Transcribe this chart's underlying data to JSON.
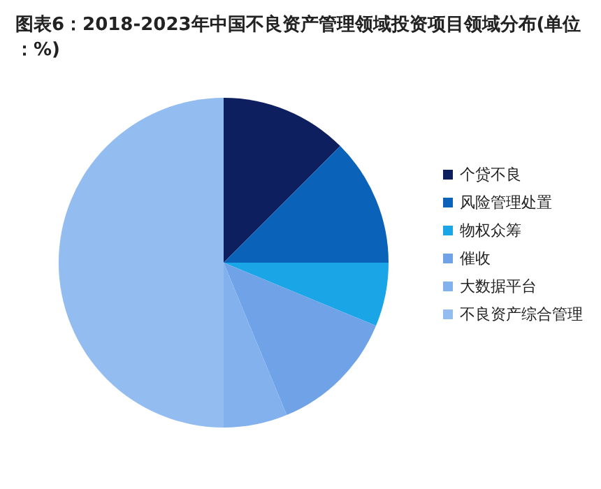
{
  "chart_data": {
    "type": "pie",
    "title": "图表6：2018-2023年中国不良资产管理领域投资项目领域分布(单位：%)",
    "categories": [
      "个贷不良",
      "风险管理处置",
      "物权众筹",
      "催收",
      "大数据平台",
      "不良资产综合管理"
    ],
    "values": [
      12.5,
      12.5,
      6.25,
      12.5,
      6.25,
      50
    ],
    "colors": [
      "#0d1f5e",
      "#0a63b8",
      "#1aa6e6",
      "#6fa2e6",
      "#82b1ee",
      "#93bdf0"
    ],
    "legend": "right"
  }
}
